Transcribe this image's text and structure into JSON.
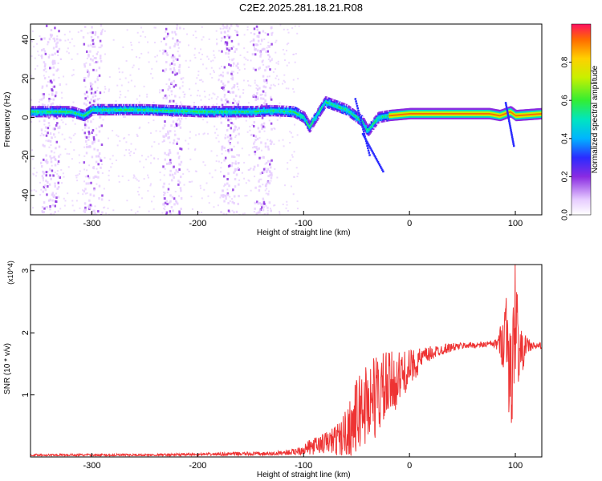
{
  "title": "C2E2.2025.281.18.21.R08",
  "chart_data": [
    {
      "type": "heatmap",
      "title": "C2E2.2025.281.18.21.R08",
      "xlabel": "Height of straight line (km)",
      "ylabel": "Frequency (Hz)",
      "xlim": [
        -358,
        125
      ],
      "ylim": [
        -50,
        48
      ],
      "xticks": [
        -300,
        -200,
        -100,
        0,
        100
      ],
      "xtick_labels": [
        "-300",
        "-200",
        "-100",
        "0",
        "100"
      ],
      "yticks": [
        -40,
        -20,
        0,
        20,
        40
      ],
      "ytick_labels": [
        "-40",
        "-20",
        "0",
        "20",
        "40"
      ],
      "grid": false,
      "colorbar": {
        "label": "Normalized spectral amplitude",
        "range": [
          0,
          1
        ],
        "ticks": [
          0.0,
          0.2,
          0.4,
          0.6,
          0.8
        ],
        "tick_labels": [
          "0.0",
          "0.2",
          "0.4",
          "0.6",
          "0.8"
        ]
      },
      "trace": {
        "x": [
          -358,
          -320,
          -308,
          -300,
          -250,
          -200,
          -150,
          -130,
          -110,
          -100,
          -95,
          -80,
          -60,
          -45,
          -40,
          -30,
          -20,
          0,
          30,
          75,
          85,
          90,
          95,
          100,
          125
        ],
        "y": [
          3,
          3,
          1,
          4,
          4,
          3,
          3,
          3.5,
          3,
          0,
          -5,
          8,
          4,
          -2,
          -7,
          0,
          1,
          2,
          2,
          2,
          1,
          2,
          3,
          1,
          2
        ]
      },
      "vertical_noise_bands_x": [
        -340,
        -300,
        -225,
        -170,
        -140
      ]
    },
    {
      "type": "line",
      "xlabel": "Height of straight line (km)",
      "ylabel": "SNR (10 * v/v)",
      "y_multiplier_label": "(x10^4)",
      "xlim": [
        -358,
        125
      ],
      "ylim": [
        0,
        3.1
      ],
      "xticks": [
        -300,
        -200,
        -100,
        0,
        100
      ],
      "xtick_labels": [
        "-300",
        "-200",
        "-100",
        "0",
        "100"
      ],
      "yticks": [
        1,
        2,
        3
      ],
      "ytick_labels": [
        "1",
        "2",
        "3"
      ],
      "grid": false,
      "color": "#ee3333",
      "series": [
        {
          "x": [
            -358,
            -300,
            -250,
            -200,
            -160,
            -130,
            -110,
            -95,
            -85,
            -75,
            -65,
            -55,
            -45,
            -35,
            -25,
            -15,
            -5,
            5,
            15,
            25,
            35,
            45,
            55,
            65,
            75,
            82,
            88,
            92,
            96,
            100,
            104,
            110,
            118,
            125
          ],
          "y": [
            0.03,
            0.03,
            0.03,
            0.04,
            0.05,
            0.05,
            0.08,
            0.15,
            0.2,
            0.25,
            0.3,
            0.5,
            0.8,
            0.95,
            1.05,
            1.2,
            1.35,
            1.5,
            1.62,
            1.7,
            1.75,
            1.78,
            1.8,
            1.8,
            1.82,
            1.82,
            1.85,
            2.2,
            1.0,
            2.4,
            1.6,
            1.8,
            1.78,
            1.8
          ],
          "noise_amplitude": [
            0.02,
            0.02,
            0.02,
            0.02,
            0.03,
            0.03,
            0.05,
            0.12,
            0.15,
            0.2,
            0.3,
            0.5,
            0.7,
            0.7,
            0.65,
            0.5,
            0.35,
            0.25,
            0.15,
            0.1,
            0.08,
            0.06,
            0.05,
            0.05,
            0.05,
            0.08,
            0.4,
            0.9,
            1.0,
            1.0,
            0.5,
            0.15,
            0.06,
            0.05
          ]
        }
      ]
    }
  ]
}
